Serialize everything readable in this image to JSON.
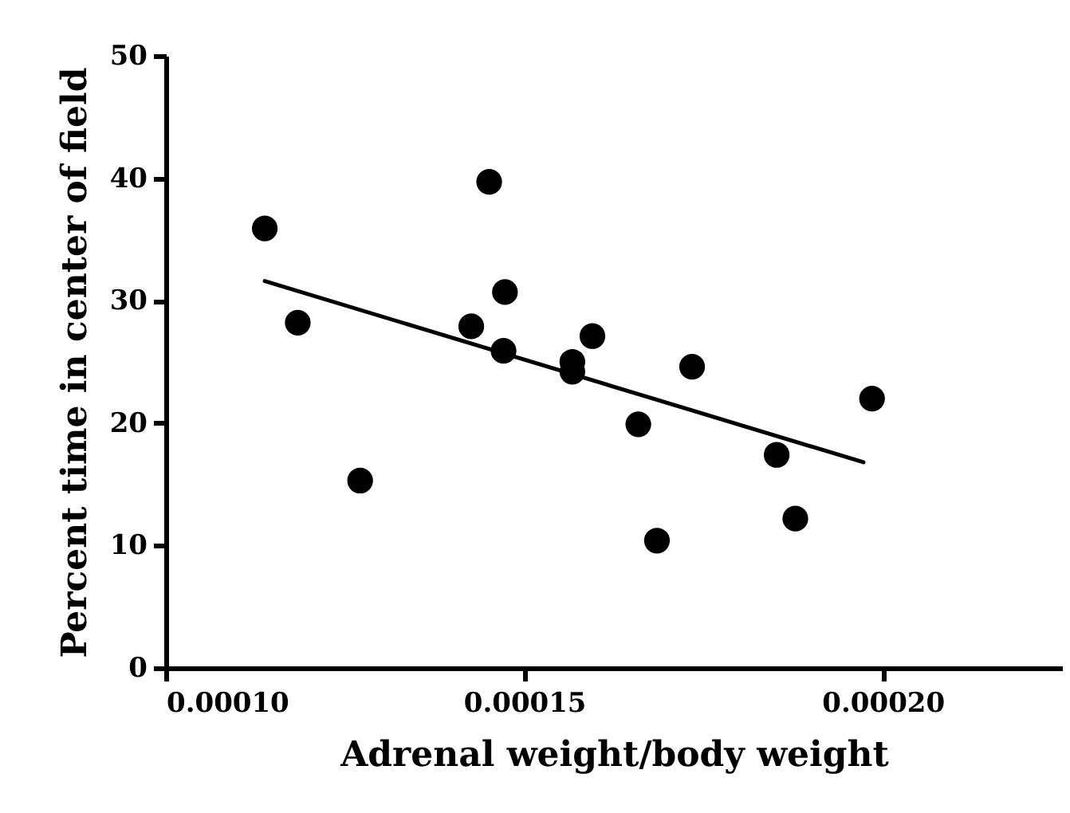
{
  "chart_data": {
    "type": "scatter",
    "xlabel": "Adrenal weight/body weight",
    "ylabel": "Percent time in center of field",
    "xlim": [
      0.0001,
      0.000225
    ],
    "xticks": [
      {
        "value": 0.0001,
        "label": "0.00010"
      },
      {
        "value": 0.00015,
        "label": "0.00015"
      },
      {
        "value": 0.0002,
        "label": "0.00020"
      }
    ],
    "ylim": [
      0,
      50
    ],
    "yticks": [
      0,
      10,
      20,
      30,
      40,
      50
    ],
    "grid": false,
    "series": [
      {
        "color": "#000000",
        "marker": "circle",
        "x": [
          0.0001138,
          0.0001184,
          0.0001271,
          0.0001451,
          0.0001426,
          0.0001473,
          0.0001471,
          0.0001567,
          0.0001567,
          0.0001595,
          0.0001659,
          0.0001685,
          0.0001734,
          0.0001852,
          0.0001878,
          0.0001985
        ],
        "values": [
          35.9,
          28.2,
          15.3,
          39.7,
          27.9,
          30.7,
          25.9,
          25.0,
          24.2,
          27.1,
          19.9,
          10.4,
          24.6,
          17.4,
          12.2,
          22.0
        ]
      },
      {
        "type": "line",
        "color": "#000000",
        "line_style": "solid",
        "x": [
          0.0001138,
          0.0001973
        ],
        "values": [
          31.6,
          16.8
        ]
      }
    ]
  }
}
